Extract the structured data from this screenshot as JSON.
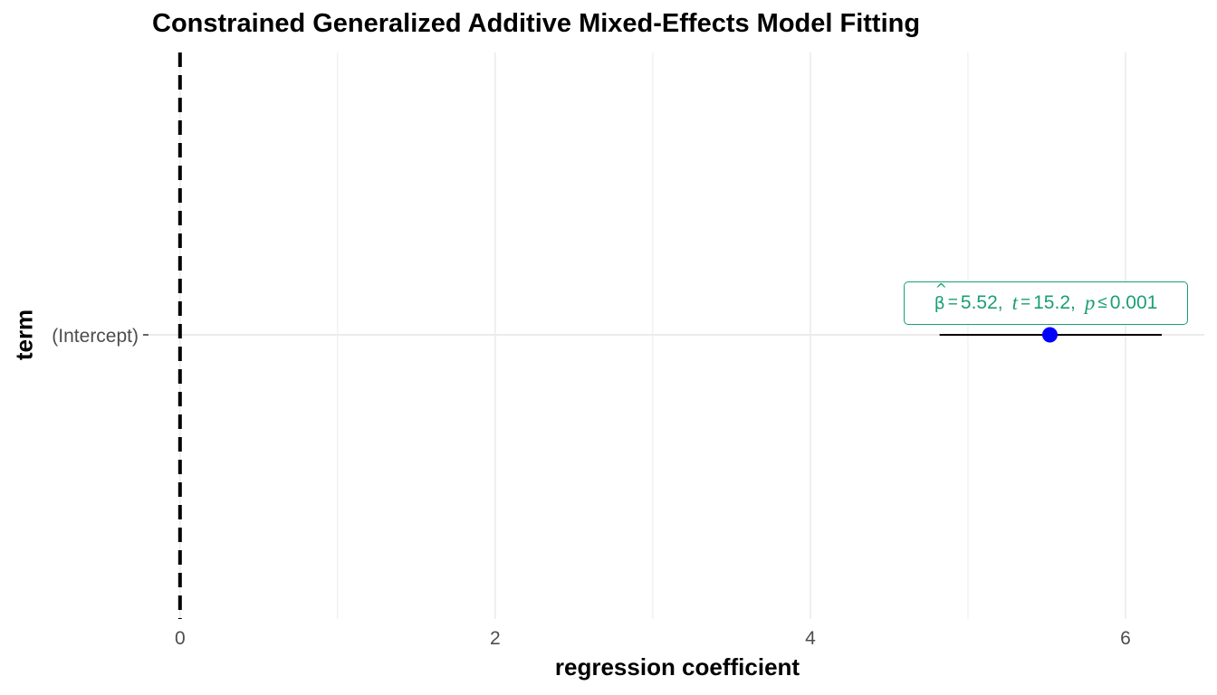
{
  "chart_data": {
    "type": "scatter",
    "title": "Constrained Generalized Additive Mixed-Effects Model Fitting",
    "xlabel": "regression coefficient",
    "ylabel": "term",
    "xlim": [
      -0.2,
      6.5
    ],
    "x_ticks": [
      "0",
      "2",
      "4",
      "6"
    ],
    "x_tick_values": [
      0,
      2,
      4,
      6
    ],
    "x_minor_grid": [
      1,
      3,
      5
    ],
    "categories": [
      "(Intercept)"
    ],
    "points": [
      {
        "term": "(Intercept)",
        "estimate": 5.52,
        "conf_low": 4.82,
        "conf_high": 6.23
      }
    ],
    "reference_line": {
      "x": 0,
      "style": "dashed"
    },
    "annotation": {
      "estimate": "5.52",
      "t": "15.2",
      "p": "0.001"
    },
    "grid": true,
    "colors": {
      "point": "#0000ff",
      "annotation": "#1b9e77",
      "grid": "#ebebeb",
      "reference_line": "#000000"
    }
  }
}
